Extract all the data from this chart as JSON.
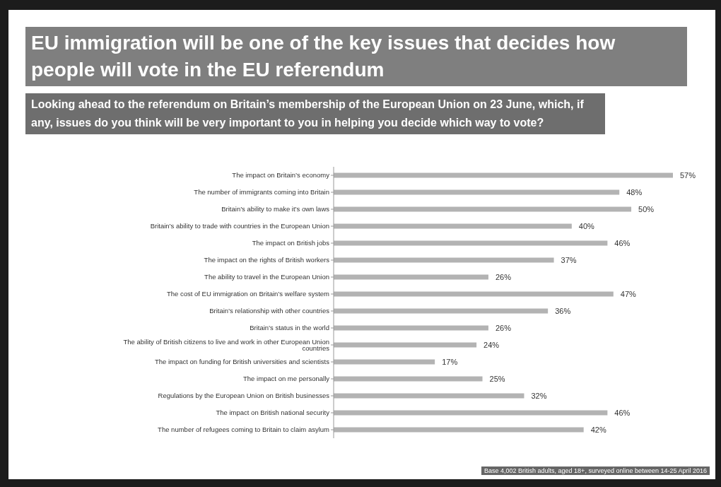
{
  "chart_data": {
    "type": "bar",
    "orientation": "horizontal",
    "title": "EU immigration will be one of the key issues that decides how people will vote in the EU referendum",
    "subtitle": "Looking ahead to the referendum on Britain’s membership of the European Union on 23 June, which, if any, issues do you think will be very important to you in helping you decide which way to vote?",
    "categories": [
      "The impact on Britain’s economy",
      "The number of immigrants coming into Britain",
      "Britain’s ability to make it’s own laws",
      "Britain’s ability to trade with countries in the European Union",
      "The impact on British jobs",
      "The impact on the rights of British workers",
      "The ability to travel in the European Union",
      "The cost of EU immigration on Britain’s welfare system",
      "Britain’s relationship with other countries",
      "Britain’s status in the world",
      "The ability of British citizens to live and work in other European Union countries",
      "The impact on funding for British universities and scientists",
      "The impact on me personally",
      "Regulations by the European Union on British businesses",
      "The impact on British national security",
      "The number of refugees coming to Britain to claim asylum"
    ],
    "values": [
      57,
      48,
      50,
      40,
      46,
      37,
      26,
      47,
      36,
      26,
      24,
      17,
      25,
      32,
      46,
      42
    ],
    "value_labels": [
      "57%",
      "48%",
      "50%",
      "40%",
      "46%",
      "37%",
      "26%",
      "47%",
      "36%",
      "26%",
      "24%",
      "17%",
      "25%",
      "32%",
      "46%",
      "42%"
    ],
    "color": "#b3b3b3",
    "grid": false,
    "legend": false,
    "annotations": [
      "Base 4,002 British adults, aged 18+, surveyed online between 14-25 April 2016"
    ]
  }
}
